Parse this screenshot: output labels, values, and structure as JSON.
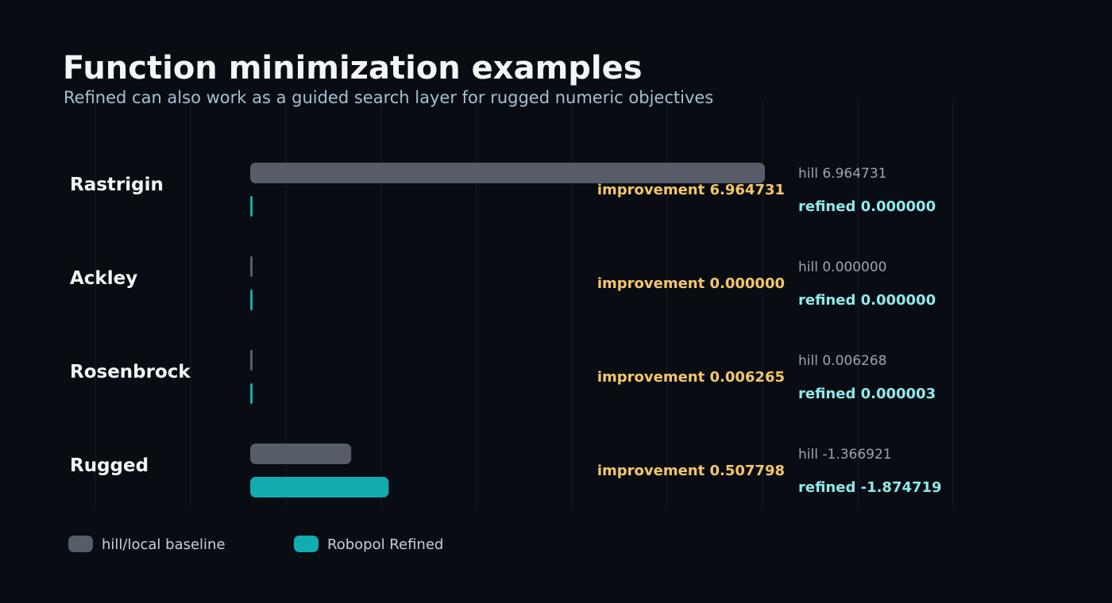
{
  "title": "Function minimization examples",
  "subtitle": "Refined can also work as a guided search layer for rugged numeric objectives",
  "colors": {
    "background": "#090d13",
    "grid": "#161c25",
    "baseline": "#575c69",
    "refined": "#12acb0",
    "improvement": "#f4c66a",
    "refined_text": "#8fe9ea",
    "hill_text": "#9ca3ad",
    "title": "#f3f6f8",
    "subtitle": "#a8c0d0",
    "label": "#f3f6f8",
    "legend_text": "#c7ced6"
  },
  "chart_data": {
    "type": "bar",
    "orientation": "horizontal",
    "grid": true,
    "legend_position": "bottom-left",
    "categories": [
      "Rastrigin",
      "Ackley",
      "Rosenbrock",
      "Rugged"
    ],
    "series": [
      {
        "name": "hill/local baseline",
        "values": [
          6.964731,
          0.0,
          0.006268,
          -1.366921
        ]
      },
      {
        "name": "Robopol Refined",
        "values": [
          0.0,
          0.0,
          3e-06,
          -1.874719
        ]
      }
    ],
    "improvement": [
      6.964731,
      0.0,
      0.006265,
      0.507798
    ],
    "hill_labels": [
      "hill 6.964731",
      "hill 0.000000",
      "hill 0.006268",
      "hill -1.366921"
    ],
    "refined_labels": [
      "refined 0.000000",
      "refined 0.000000",
      "refined 0.000003",
      "refined -1.874719"
    ],
    "improvement_labels": [
      "improvement 6.964731",
      "improvement 0.000000",
      "improvement 0.006265",
      "improvement 0.507798"
    ]
  }
}
